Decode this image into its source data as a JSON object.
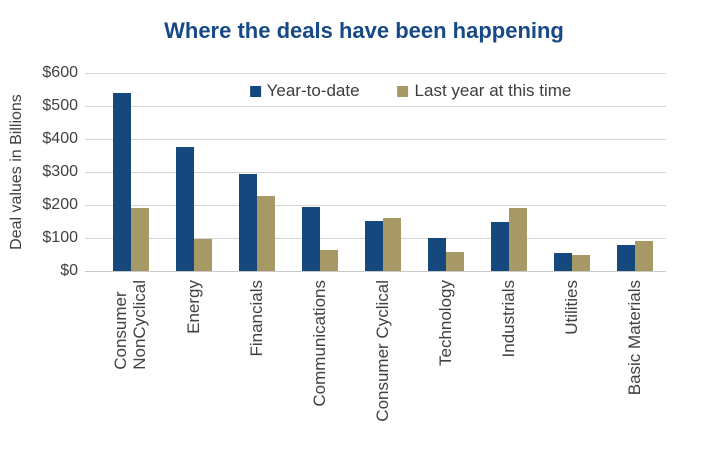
{
  "page": {
    "background_color": "#ffffff"
  },
  "chart_data": {
    "type": "bar",
    "title": "Where the deals have been happening",
    "title_color": "#164986",
    "ylabel": "Deal values in Billions",
    "ylim": [
      0,
      600
    ],
    "ytick_step": 100,
    "ytick_labels": [
      "$600",
      "$500",
      "$400",
      "$300",
      "$200",
      "$100",
      "$0"
    ],
    "grid": "horizontal",
    "gridline_color": "#d5d5d5",
    "text_color": "#414141",
    "legend_position": "top-inside",
    "categories": [
      "Consumer\nNonCyclical",
      "Energy",
      "Financials",
      "Communications",
      "Consumer Cyclical",
      "Technology",
      "Industrials",
      "Utilities",
      "Basic Materials"
    ],
    "series": [
      {
        "name": "Year-to-date",
        "color": "#15497D",
        "values": [
          540,
          375,
          295,
          195,
          150,
          100,
          148,
          55,
          78
        ]
      },
      {
        "name": "Last year at this time",
        "color": "#A69965",
        "values": [
          190,
          97,
          228,
          65,
          160,
          58,
          192,
          48,
          90
        ]
      }
    ]
  }
}
